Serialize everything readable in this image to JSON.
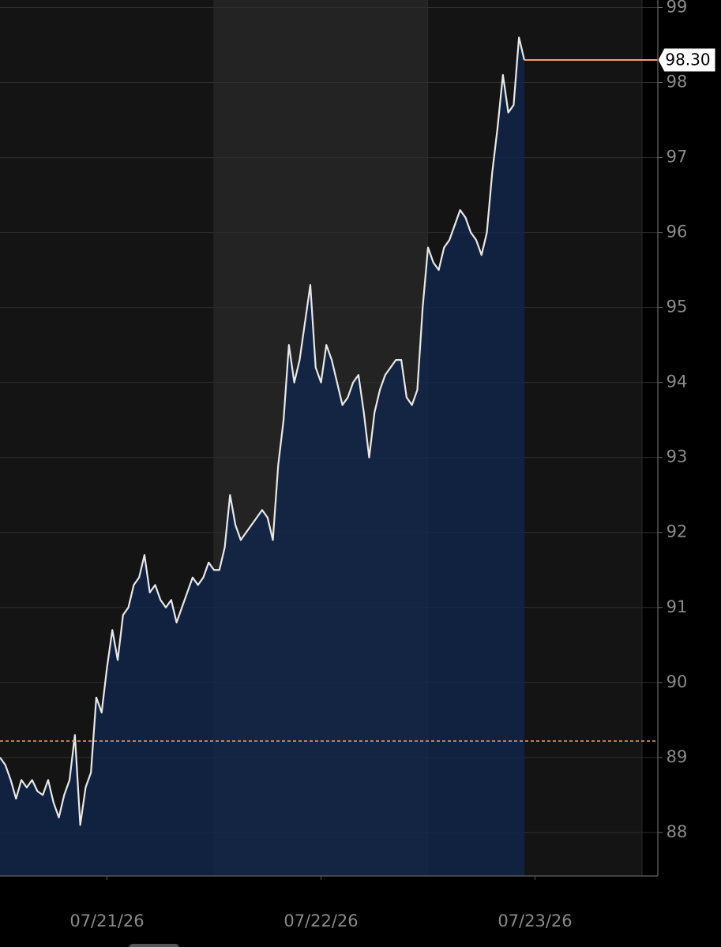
{
  "chart_data": {
    "type": "area",
    "categories": [
      null,
      null,
      null,
      null,
      null,
      null,
      null,
      null,
      null,
      null,
      null,
      null,
      null,
      null,
      null,
      null,
      null,
      null,
      null,
      null,
      "07/21/26",
      null,
      null,
      null,
      null,
      null,
      null,
      null,
      null,
      null,
      null,
      null,
      null,
      null,
      null,
      null,
      null,
      null,
      null,
      null,
      null,
      null,
      null,
      null,
      null,
      null,
      null,
      null,
      null,
      null,
      null,
      null,
      null,
      null,
      null,
      null,
      null,
      null,
      null,
      null,
      "07/22/26",
      null,
      null,
      null,
      null,
      null,
      null,
      null,
      null,
      null,
      null,
      null,
      null,
      null,
      null,
      null,
      null,
      null,
      null,
      null,
      null,
      null,
      null,
      null,
      null,
      null,
      null,
      null,
      null,
      null,
      null,
      null,
      null,
      null,
      null,
      null,
      null,
      null,
      null,
      null,
      "07/23/26",
      null,
      null,
      null,
      null,
      null,
      null,
      null,
      null,
      null,
      null,
      null,
      null,
      null,
      null,
      null,
      null,
      null,
      null,
      null
    ],
    "values": [
      89.0,
      88.9,
      88.7,
      88.45,
      88.7,
      88.6,
      88.7,
      88.55,
      88.5,
      88.7,
      88.4,
      88.2,
      88.5,
      88.7,
      89.3,
      88.1,
      88.6,
      88.8,
      89.8,
      89.6,
      90.2,
      90.7,
      90.3,
      90.9,
      91.0,
      91.3,
      91.4,
      91.7,
      91.2,
      91.3,
      91.1,
      91.0,
      91.1,
      90.8,
      91.0,
      91.2,
      91.4,
      91.3,
      91.4,
      91.6,
      91.5,
      91.5,
      91.8,
      92.5,
      92.1,
      91.9,
      92.0,
      92.1,
      92.2,
      92.3,
      92.2,
      91.9,
      92.9,
      93.5,
      94.5,
      94.0,
      94.3,
      94.8,
      95.3,
      94.2,
      94.0,
      94.5,
      94.3,
      94.0,
      93.7,
      93.8,
      94.0,
      94.1,
      93.6,
      93.0,
      93.6,
      93.9,
      94.1,
      94.2,
      94.3,
      94.3,
      93.8,
      93.7,
      93.9,
      95.0,
      95.8,
      95.6,
      95.5,
      95.8,
      95.9,
      96.1,
      96.3,
      96.2,
      96.0,
      95.9,
      95.7,
      96.0,
      96.8,
      97.4,
      98.1,
      97.6,
      97.7,
      98.6,
      98.3,
      null,
      null,
      null,
      null,
      null,
      null,
      null,
      null,
      null,
      null,
      null,
      null,
      null,
      null,
      null,
      null,
      null,
      null,
      null,
      null,
      null
    ],
    "color": "#e8e8e8",
    "fill_color": "#10254f",
    "ylim": [
      87.42,
      99.1
    ],
    "yticks": [
      88,
      89,
      90,
      91,
      92,
      93,
      94,
      95,
      96,
      97,
      98,
      99
    ],
    "grid": true,
    "reference_line": 89.22,
    "reference_color": "#f0a070",
    "last_label": {
      "value": 98.3,
      "label": "98.30"
    }
  }
}
